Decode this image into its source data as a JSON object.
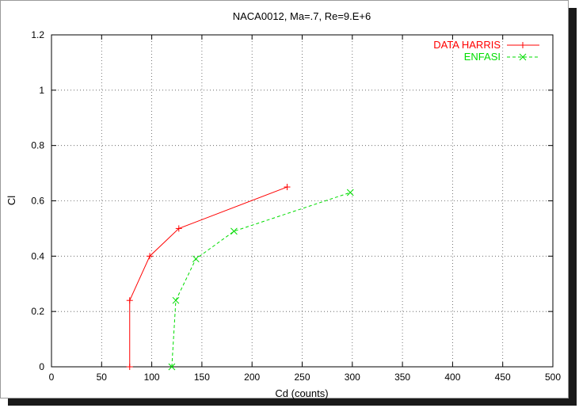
{
  "chart_data": {
    "type": "line",
    "title": "NACA0012, Ma=.7, Re=9.E+6",
    "xlabel": "Cd (counts)",
    "ylabel": "Cl",
    "xlim": [
      0,
      500
    ],
    "ylim": [
      0,
      1.2
    ],
    "xticks": [
      0,
      50,
      100,
      150,
      200,
      250,
      300,
      350,
      400,
      450,
      500
    ],
    "yticks": [
      0,
      0.2,
      0.4,
      0.6,
      0.8,
      1,
      1.2
    ],
    "grid": true,
    "legend_position": "top-right",
    "series": [
      {
        "name": "DATA HARRIS",
        "color": "#ff0000",
        "marker": "plus",
        "line": "solid",
        "x": [
          78,
          78,
          98,
          127,
          235
        ],
        "y": [
          0,
          0.24,
          0.4,
          0.5,
          0.65
        ]
      },
      {
        "name": "ENFASI",
        "color": "#00dd00",
        "marker": "cross",
        "line": "dashed",
        "x": [
          120,
          124,
          144,
          182,
          298
        ],
        "y": [
          0,
          0.24,
          0.39,
          0.49,
          0.63
        ]
      }
    ]
  }
}
